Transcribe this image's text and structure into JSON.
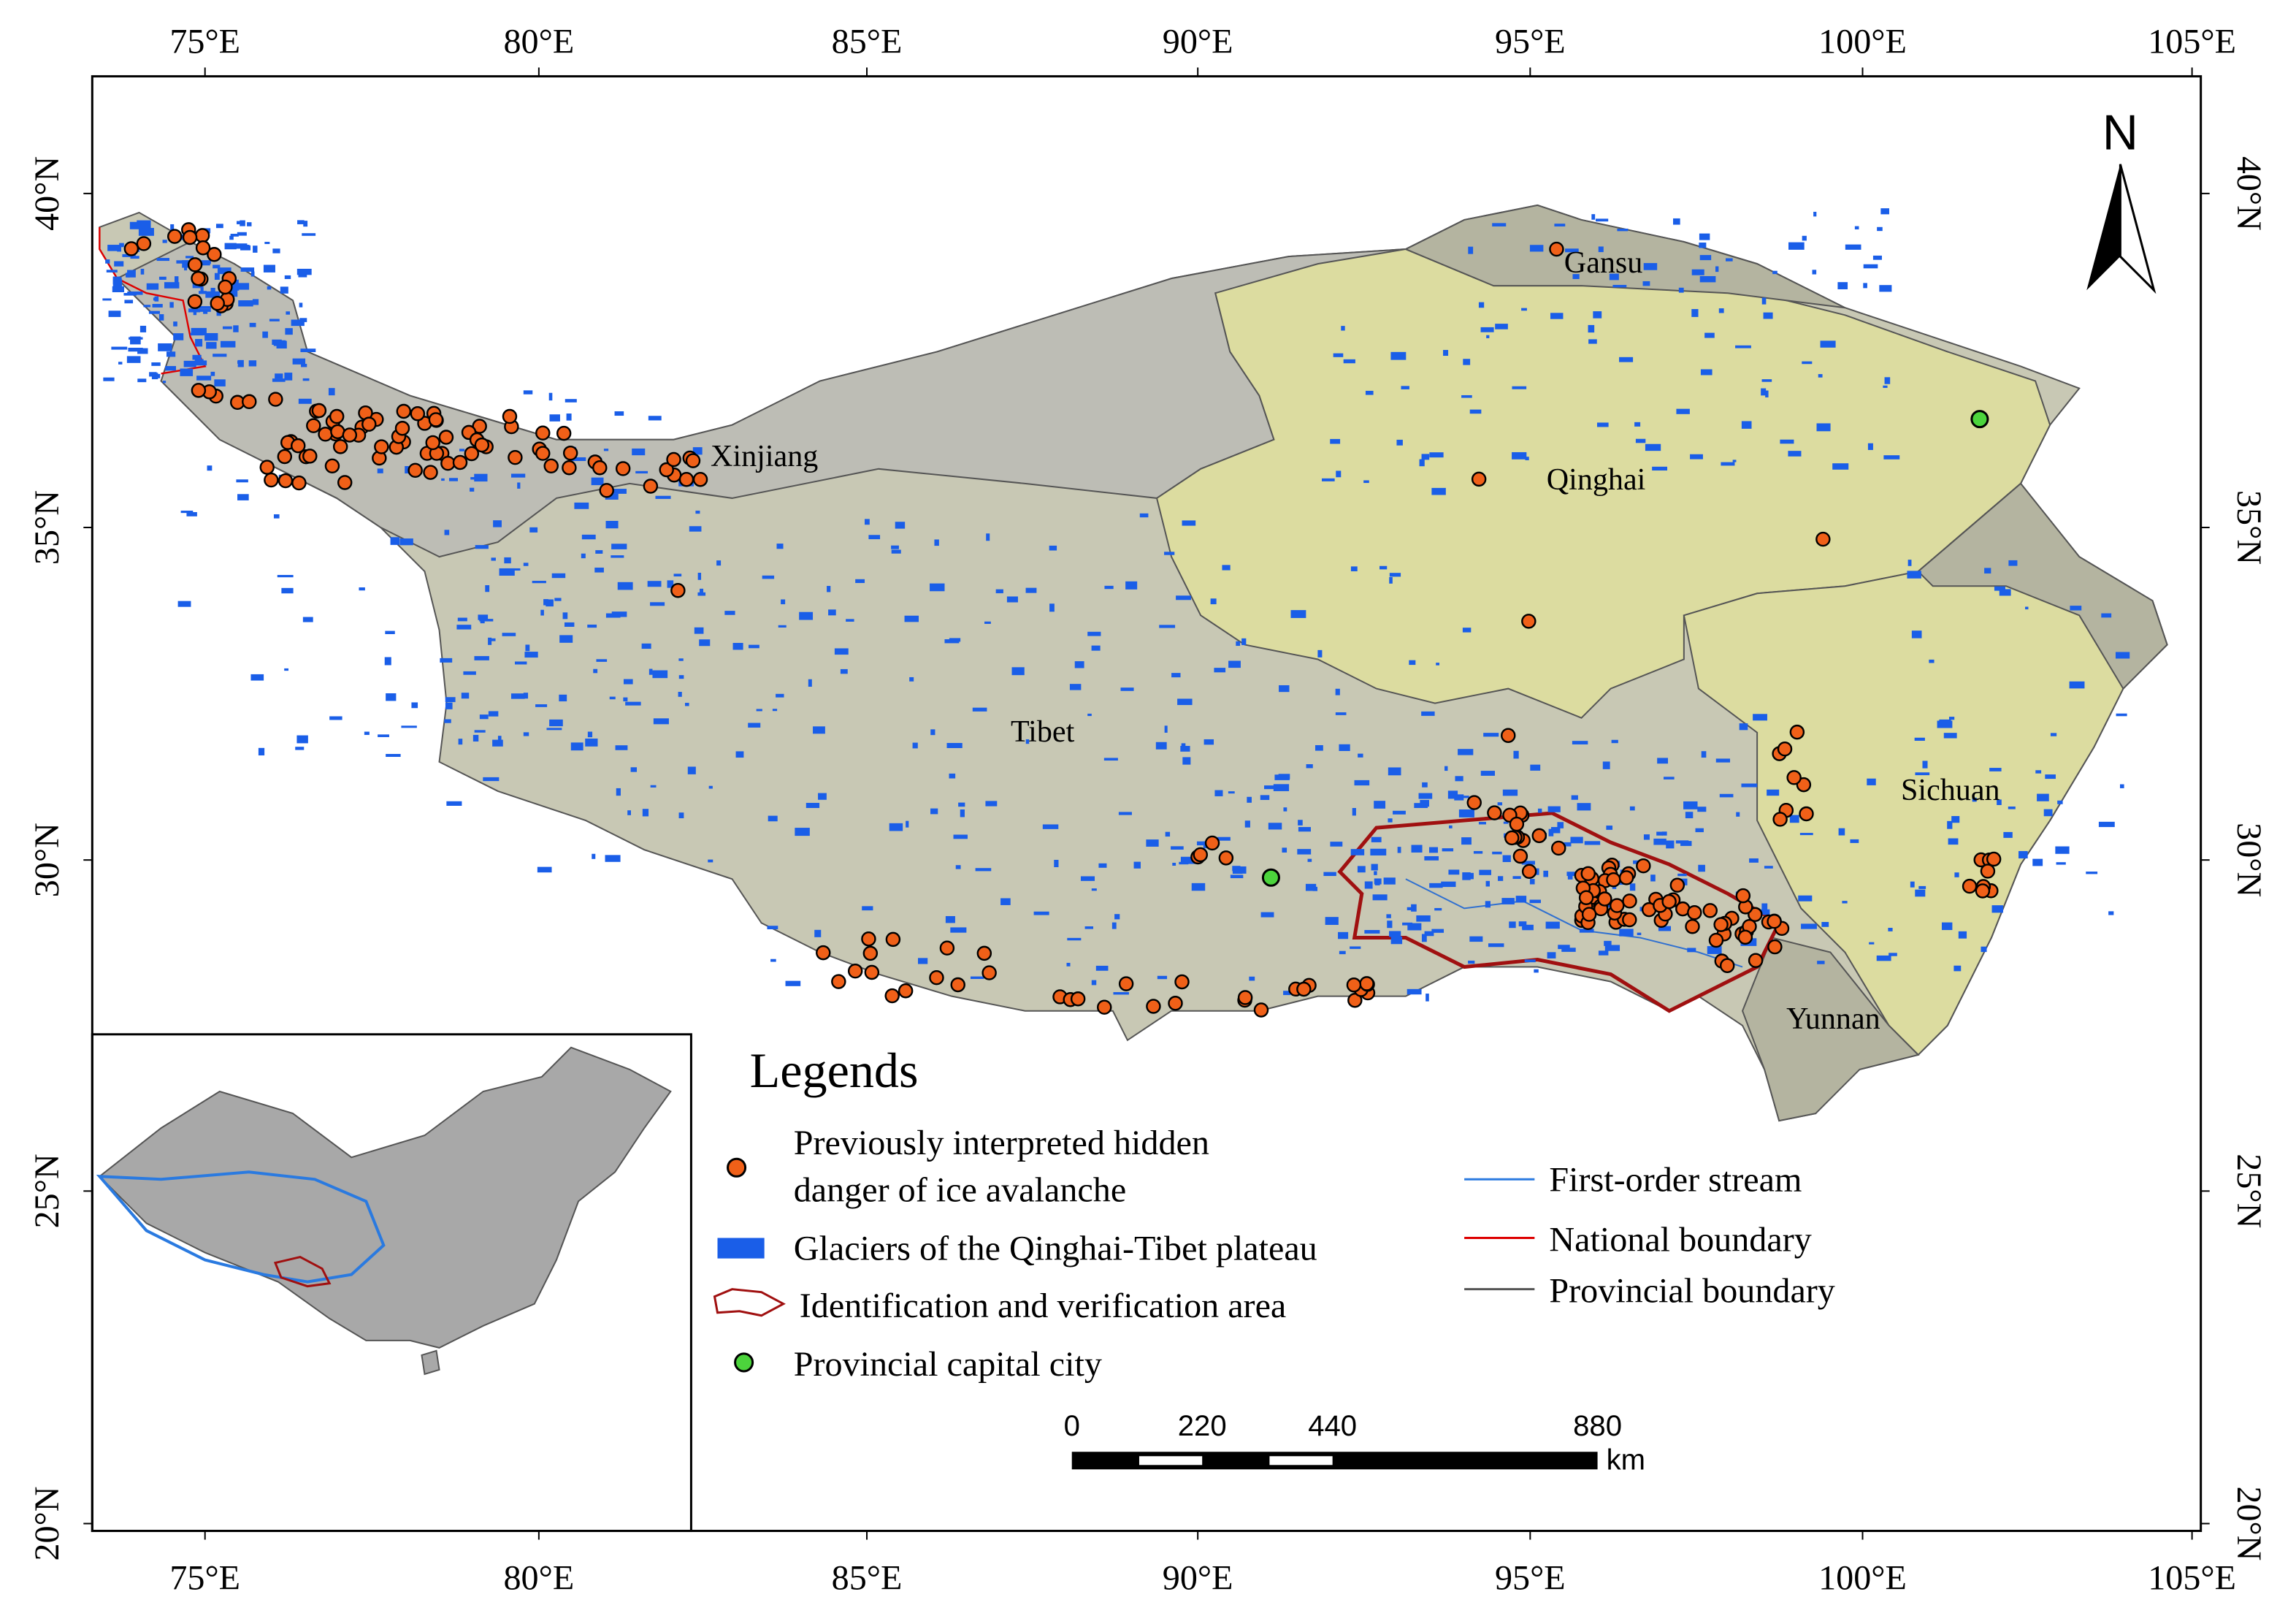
{
  "map": {
    "lon_ticks": [
      "75°E",
      "80°E",
      "85°E",
      "90°E",
      "95°E",
      "100°E",
      "105°E"
    ],
    "lat_ticks": [
      "40°N",
      "35°N",
      "30°N",
      "25°N",
      "20°N"
    ],
    "north_label": "N",
    "regions": [
      "Xinjiang",
      "Gansu",
      "Qinghai",
      "Tibet",
      "Sichuan",
      "Yunnan"
    ],
    "legend": {
      "title": "Legends",
      "avalanche": [
        "Previously interpreted  hidden",
        "danger of ice avalanche"
      ],
      "glaciers": "Glaciers of the Qinghai-Tibet plateau",
      "area": "Identification and verification area",
      "capital": "Provincial capital city",
      "stream": "First-order stream",
      "national": "National boundary",
      "provincial": "Provincial boundary"
    },
    "scale_bar": {
      "labels": [
        "0",
        "220",
        "440",
        "880"
      ],
      "unit": "km"
    }
  }
}
